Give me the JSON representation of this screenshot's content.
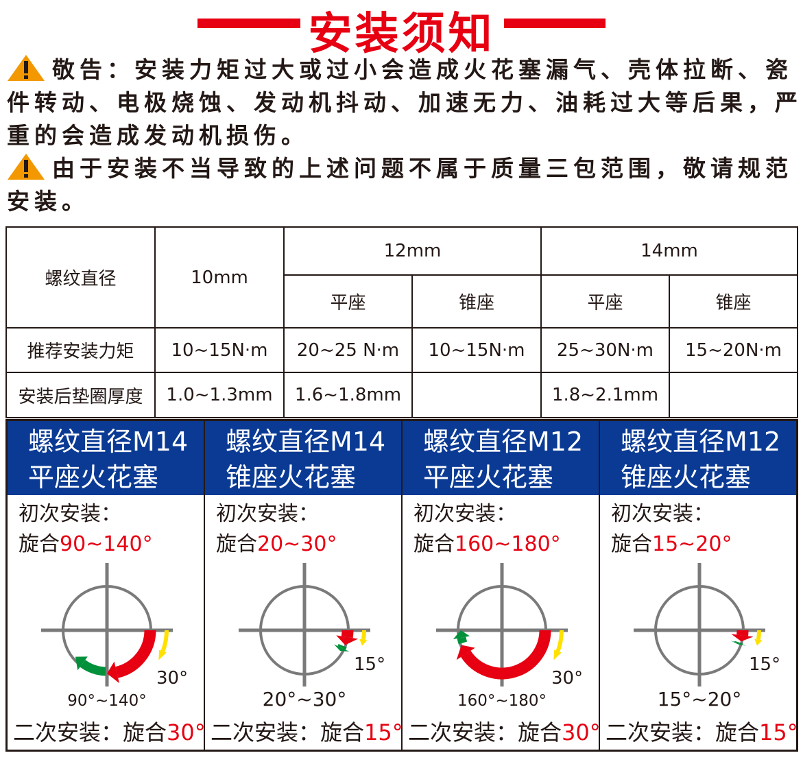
{
  "title": "安装须知",
  "warnings": {
    "w1": "敬告：安装力矩过大或过小会造成火花塞漏气、壳体拉断、瓷件转动、电极烧蚀、发动机抖动、加速无力、油耗过大等后果，严重的会造成发动机损伤。",
    "w2": "由于安装不当导致的上述问题不属于质量三包范围，敬请规范安装。",
    "icon": "warning-triangle-icon"
  },
  "table": {
    "h_diameter": "螺纹直径",
    "h_10": "10mm",
    "h_12": "12mm",
    "h_14": "14mm",
    "flat": "平座",
    "cone": "锥座",
    "torque_label": "推荐安装力矩",
    "torque": [
      "10~15N·m",
      "20~25 N·m",
      "10~15N·m",
      "25~30N·m",
      "15~20N·m"
    ],
    "gasket_label": "安装后垫圈厚度",
    "gasket": [
      "1.0~1.3mm",
      "1.6~1.8mm",
      "",
      "1.8~2.1mm",
      ""
    ]
  },
  "colors": {
    "accent": "#e60012",
    "header_blue": "#0a3a94",
    "green": "#00913a",
    "yellow": "#fff100",
    "grey": "#7a7a7a"
  },
  "panels": [
    {
      "line1": "螺纹直径M14",
      "line2": "平座火花塞",
      "first_label": "初次安装：",
      "turn": "旋合",
      "first_value": "90~140°",
      "range_label": "90°~140°",
      "initial_min": 90,
      "initial_max": 140,
      "second_deg": 30,
      "second_label": "30°",
      "second_text": "二次安装：旋合",
      "second_value": "30°"
    },
    {
      "line1": "螺纹直径M14",
      "line2": "锥座火花塞",
      "first_label": "初次安装：",
      "turn": "旋合",
      "first_value": "20~30°",
      "range_label": "20°~30°",
      "initial_min": 20,
      "initial_max": 30,
      "second_deg": 15,
      "second_label": "15°",
      "second_text": "二次安装：旋合",
      "second_value": "15°"
    },
    {
      "line1": "螺纹直径M12",
      "line2": "平座火花塞",
      "first_label": "初次安装：",
      "turn": "旋合",
      "first_value": "160~180°",
      "range_label": "160°~180°",
      "initial_min": 160,
      "initial_max": 180,
      "second_deg": 30,
      "second_label": "30°",
      "second_text": "二次安装：旋合",
      "second_value": "30°"
    },
    {
      "line1": "螺纹直径M12",
      "line2": "锥座火花塞",
      "first_label": "初次安装：",
      "turn": "旋合",
      "first_value": "15~20°",
      "range_label": "15°~20°",
      "initial_min": 15,
      "initial_max": 20,
      "second_deg": 15,
      "second_label": "15°",
      "second_text": "二次安装：旋合",
      "second_value": "15°"
    }
  ]
}
